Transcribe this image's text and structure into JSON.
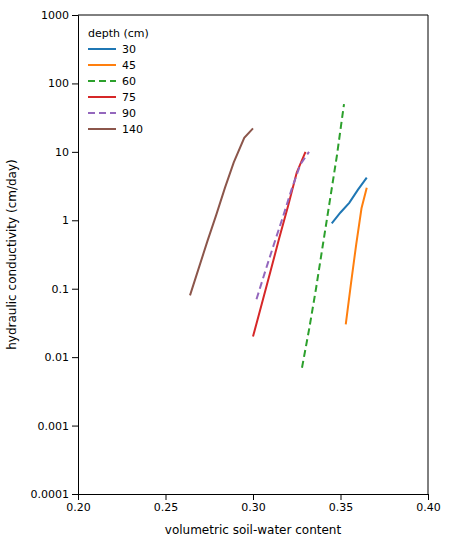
{
  "chart_data": {
    "type": "line",
    "xlabel": "volumetric soil-water content",
    "ylabel": "hydraulic conductivity (cm/day)",
    "log": "y",
    "grid": false,
    "legend": "upper left",
    "legend_title": "depth (cm)",
    "xlim": [
      0.2,
      0.4
    ],
    "ylim": [
      0.0001,
      1000
    ],
    "xticks": [
      {
        "value": 0.2,
        "label": "0.20"
      },
      0.25,
      {
        "value": 0.3,
        "label": "0.30"
      },
      0.35,
      {
        "value": 0.4,
        "label": "0.40"
      }
    ],
    "yticks": [
      0.0001,
      0.001,
      0.01,
      0.1,
      1,
      10,
      100,
      1000
    ],
    "series": [
      {
        "name": "30",
        "line_style": "solid",
        "x": [
          0.345,
          0.35,
          0.355,
          0.36,
          0.365
        ],
        "values": [
          0.9,
          1.3,
          1.8,
          2.8,
          4.2
        ]
      },
      {
        "name": "45",
        "line_style": "solid",
        "x": [
          0.353,
          0.356,
          0.359,
          0.362,
          0.365
        ],
        "values": [
          0.03,
          0.12,
          0.45,
          1.5,
          3.0
        ]
      },
      {
        "name": "60",
        "line_style": "dashed",
        "x": [
          0.328,
          0.332,
          0.336,
          0.34,
          0.344,
          0.348,
          0.352
        ],
        "values": [
          0.007,
          0.025,
          0.1,
          0.45,
          2.0,
          9.0,
          50.0
        ]
      },
      {
        "name": "75",
        "line_style": "solid",
        "x": [
          0.3,
          0.305,
          0.31,
          0.315,
          0.32,
          0.325,
          0.33
        ],
        "values": [
          0.02,
          0.06,
          0.18,
          0.55,
          1.6,
          5.0,
          10.0
        ]
      },
      {
        "name": "90",
        "line_style": "dashed",
        "x": [
          0.302,
          0.307,
          0.312,
          0.317,
          0.322,
          0.327,
          0.332
        ],
        "values": [
          0.07,
          0.18,
          0.45,
          1.1,
          2.8,
          6.5,
          10.0
        ]
      },
      {
        "name": "140",
        "line_style": "solid",
        "x": [
          0.264,
          0.269,
          0.274,
          0.279,
          0.284,
          0.289,
          0.295,
          0.3
        ],
        "values": [
          0.08,
          0.2,
          0.5,
          1.2,
          3.0,
          7.0,
          16.0,
          22.0
        ]
      }
    ]
  }
}
